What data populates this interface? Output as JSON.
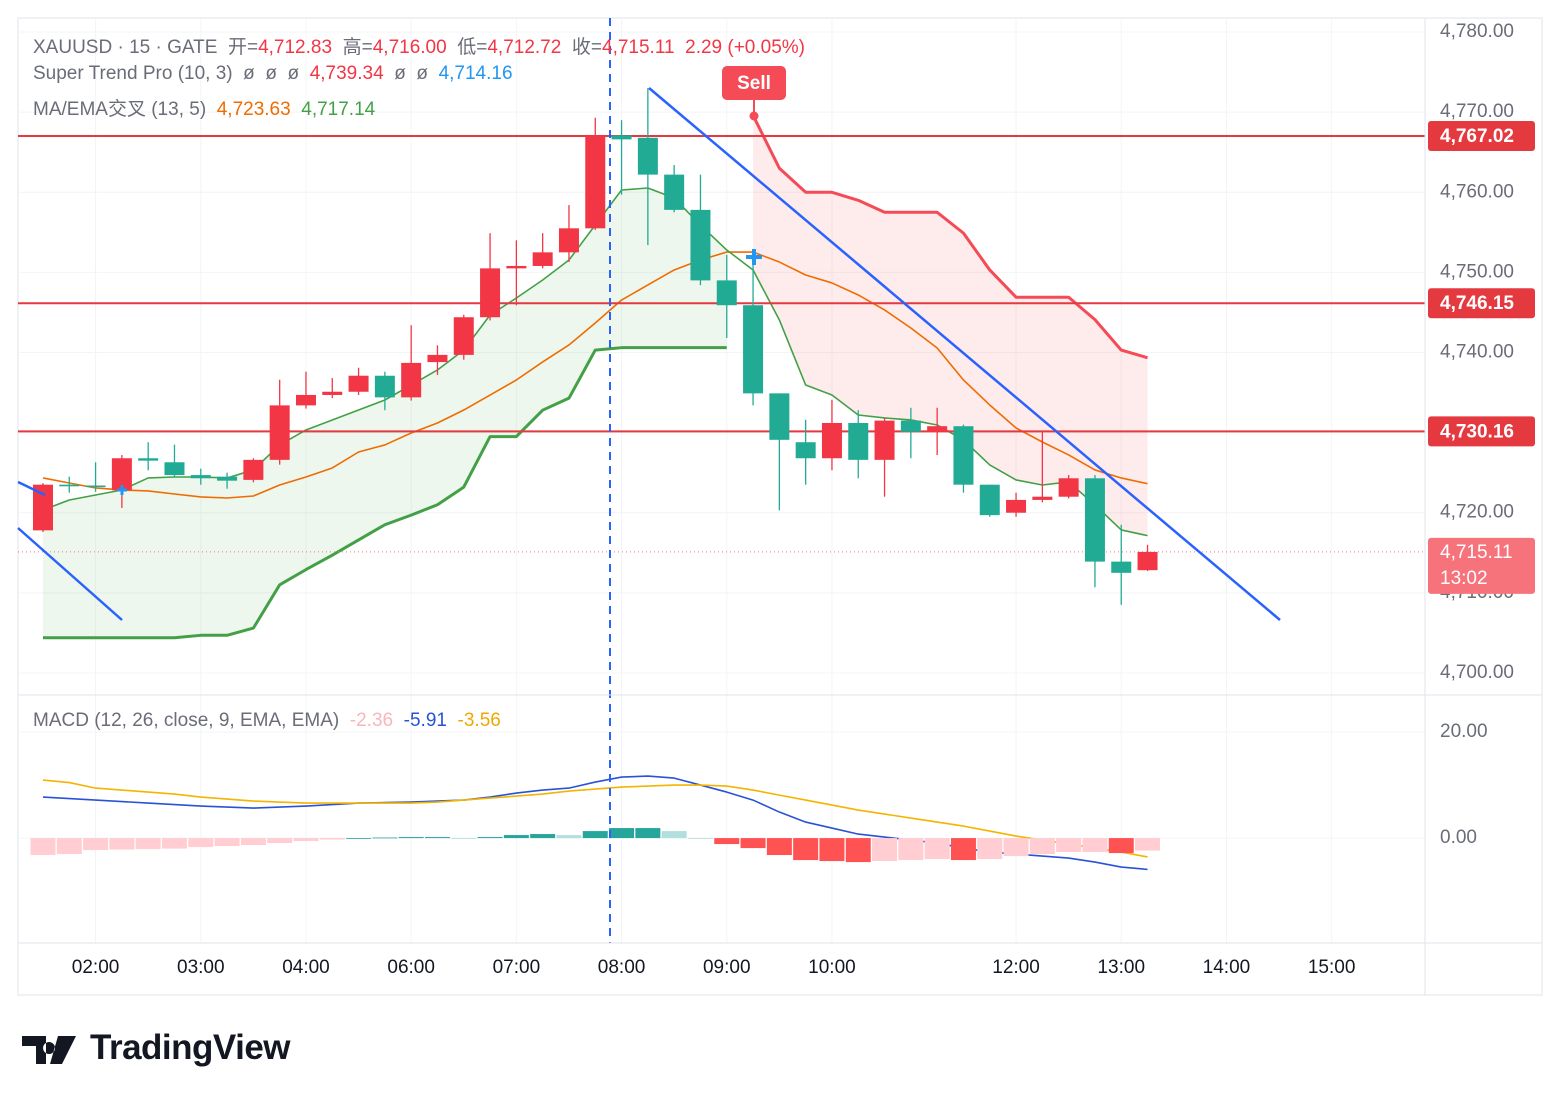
{
  "chart_data": [
    {
      "type": "candlestick",
      "legend": {
        "symbol": "XAUUSD · 15 · GATE",
        "open_label": "开=",
        "open": "4,712.83",
        "high_label": "高=",
        "high": "4,716.00",
        "low_label": "低=",
        "low": "4,712.72",
        "close_label": "收=",
        "close": "4,715.11",
        "change": "2.29 (+0.05%)"
      },
      "open": [
        4717.8,
        4723.5,
        4723.4,
        4722.8,
        4726.8,
        4726.3,
        4724.7,
        4724.5,
        4724.1,
        4726.6,
        4733.4,
        4734.7,
        4735.1,
        4737.1,
        4734.4,
        4738.8,
        4739.7,
        4744.4,
        4750.5,
        4750.8,
        4752.5,
        4755.5,
        4767.1,
        4766.8,
        4762.2,
        4757.8,
        4749.0,
        4745.9,
        4734.9,
        4728.8,
        4726.8,
        4731.2,
        4726.6,
        4731.5,
        4730.1,
        4730.8,
        4723.5,
        4720.0,
        4721.6,
        4722.0,
        4724.3,
        4713.9,
        4712.83
      ],
      "high": [
        4723.7,
        4724.5,
        4726.3,
        4727.2,
        4728.8,
        4728.5,
        4725.5,
        4725.0,
        4726.8,
        4736.6,
        4737.6,
        4736.8,
        4738.1,
        4737.6,
        4743.4,
        4740.9,
        4744.7,
        4754.9,
        4754.0,
        4754.9,
        4758.4,
        4769.3,
        4769.0,
        4773.0,
        4763.4,
        4762.2,
        4752.2,
        4752.2,
        4734.9,
        4731.6,
        4734.1,
        4732.8,
        4731.8,
        4733.1,
        4733.1,
        4731.0,
        4723.5,
        4722.5,
        4730.1,
        4724.7,
        4724.7,
        4718.5,
        4716.0
      ],
      "low": [
        4717.6,
        4722.5,
        4722.6,
        4720.6,
        4725.3,
        4724.4,
        4723.5,
        4723.0,
        4723.8,
        4726.0,
        4733.0,
        4734.3,
        4734.7,
        4732.8,
        4734.0,
        4737.2,
        4739.1,
        4744.0,
        4745.9,
        4750.5,
        4751.3,
        4755.3,
        4759.7,
        4753.4,
        4757.5,
        4748.4,
        4741.8,
        4733.4,
        4720.3,
        4723.5,
        4725.3,
        4724.3,
        4722.0,
        4726.8,
        4727.2,
        4722.5,
        4719.5,
        4719.5,
        4721.3,
        4721.8,
        4710.7,
        4708.5,
        4712.72
      ],
      "close": [
        4723.5,
        4723.3,
        4723.2,
        4726.8,
        4726.5,
        4724.7,
        4724.3,
        4724.0,
        4726.6,
        4733.4,
        4734.7,
        4735.1,
        4737.1,
        4734.4,
        4738.7,
        4739.7,
        4744.4,
        4750.5,
        4750.8,
        4752.5,
        4755.5,
        4767.1,
        4766.6,
        4762.2,
        4757.8,
        4749.0,
        4745.9,
        4734.9,
        4729.1,
        4726.8,
        4731.2,
        4726.6,
        4731.5,
        4730.1,
        4730.8,
        4723.5,
        4719.7,
        4721.6,
        4722.0,
        4724.3,
        4713.9,
        4712.5,
        4715.11
      ],
      "up_color": "#f23645",
      "down_color": "#22ab94",
      "xlim": [
        -0.95,
        52.55
      ],
      "xticks": [
        {
          "value": 2,
          "label": "02:00"
        },
        {
          "value": 6,
          "label": "03:00"
        },
        {
          "value": 10,
          "label": "04:00"
        },
        {
          "value": 14,
          "label": "06:00"
        },
        {
          "value": 18,
          "label": "07:00"
        },
        {
          "value": 22,
          "label": "08:00"
        },
        {
          "value": 26,
          "label": "09:00"
        },
        {
          "value": 30,
          "label": "10:00"
        },
        {
          "value": 37,
          "label": "12:00"
        },
        {
          "value": 41,
          "label": "13:00"
        },
        {
          "value": 45,
          "label": "14:00"
        },
        {
          "value": 49,
          "label": "15:00"
        }
      ],
      "ylim": [
        4697.25,
        4781.75
      ],
      "yticks": [
        {
          "value": 4700,
          "label": "4,700.00"
        },
        {
          "value": 4710,
          "label": "4,710.00"
        },
        {
          "value": 4720,
          "label": "4,720.00"
        },
        {
          "value": 4730,
          "label": "4,730.00"
        },
        {
          "value": 4740,
          "label": "4,740.00"
        },
        {
          "value": 4750,
          "label": "4,750.00"
        },
        {
          "value": 4760,
          "label": "4,760.00"
        },
        {
          "value": 4770,
          "label": "4,770.00"
        },
        {
          "value": 4780,
          "label": "4,780.00"
        }
      ],
      "grid": true,
      "supertrend": {
        "name": "Super Trend Pro (10, 3)",
        "legend_values": [
          {
            "text": "ø",
            "color": "#6a6d78"
          },
          {
            "text": "ø",
            "color": "#6a6d78"
          },
          {
            "text": "ø",
            "color": "#6a6d78"
          },
          {
            "text": "4,739.34",
            "color": "#f23645"
          },
          {
            "text": "ø",
            "color": "#6a6d78"
          },
          {
            "text": "ø",
            "color": "#6a6d78"
          },
          {
            "text": "4,714.16",
            "color": "#2196f3"
          }
        ],
        "up": {
          "color": "#43a047",
          "values": [
            4704.4,
            4704.4,
            4704.4,
            4704.4,
            4704.4,
            4704.4,
            4704.7,
            4704.7,
            4705.6,
            4711.0,
            4712.9,
            4714.7,
            4716.6,
            4718.5,
            4719.7,
            4721.0,
            4723.2,
            4729.5,
            4729.5,
            4732.8,
            4734.3,
            4740.3,
            4740.6,
            4740.6,
            4740.6,
            4740.6,
            4740.6,
            null,
            null,
            null,
            null,
            null,
            null,
            null,
            null,
            null,
            null,
            null,
            null,
            null,
            null,
            null,
            null
          ]
        },
        "down": {
          "color": "#f44b56",
          "values": [
            null,
            null,
            null,
            null,
            null,
            null,
            null,
            null,
            null,
            null,
            null,
            null,
            null,
            null,
            null,
            null,
            null,
            null,
            null,
            null,
            null,
            null,
            null,
            null,
            null,
            null,
            null,
            4769.6,
            4763.0,
            4760.0,
            4760.0,
            4759.0,
            4757.5,
            4757.5,
            4757.5,
            4754.9,
            4750.3,
            4746.9,
            4746.9,
            4746.9,
            4744.1,
            4740.3,
            4739.34
          ]
        }
      },
      "ma_ema": {
        "name": "MA/EMA交叉 (13, 5)",
        "series": [
          {
            "color": "#ef6c00",
            "label": "4,723.63",
            "values": [
              4724.34,
              4723.71,
              4723.09,
              4722.84,
              4722.72,
              4722.34,
              4721.97,
              4721.84,
              4722.09,
              4723.46,
              4724.46,
              4725.59,
              4727.58,
              4728.46,
              4729.95,
              4731.2,
              4732.82,
              4734.69,
              4736.57,
              4738.82,
              4740.94,
              4743.68,
              4746.55,
              4748.43,
              4750.3,
              4751.54,
              4752.54,
              4752.54,
              4751.29,
              4749.67,
              4748.68,
              4747.18,
              4745.31,
              4743.06,
              4740.56,
              4736.57,
              4733.45,
              4730.58,
              4728.83,
              4727.21,
              4725.34,
              4724.34,
              4723.63
            ]
          },
          {
            "color": "#43a047",
            "label": "4,717.14",
            "values": [
              4720.34,
              4721.59,
              4722.21,
              4722.84,
              4724.34,
              4724.46,
              4724.46,
              4724.34,
              4725.34,
              4728.46,
              4730.33,
              4731.58,
              4732.82,
              4734.07,
              4735.94,
              4737.82,
              4740.31,
              4744.68,
              4746.8,
              4749.05,
              4751.54,
              4755.91,
              4760.28,
              4760.53,
              4759.28,
              4755.91,
              4752.79,
              4750.3,
              4744.06,
              4735.94,
              4734.69,
              4732.2,
              4731.83,
              4731.58,
              4730.95,
              4729.08,
              4725.96,
              4724.09,
              4723.46,
              4723.84,
              4720.97,
              4717.85,
              4717.14
            ]
          }
        ]
      },
      "levels": [
        {
          "value": 4767.02,
          "label": "4,767.02"
        },
        {
          "value": 4746.15,
          "label": "4,746.15"
        },
        {
          "value": 4730.16,
          "label": "4,730.16"
        }
      ],
      "level_color": "#e53940",
      "last_price": {
        "value": 4715.11,
        "label": "4,715.11",
        "countdown": "13:02",
        "color": "#f7737c"
      },
      "annotation": "Sell"
    },
    {
      "type": "macd",
      "name": "MACD (12, 26, close, 9, EMA, EMA)",
      "legend_values": [
        {
          "text": "-2.36",
          "color": "#f7b6bd"
        },
        {
          "text": "-5.91",
          "color": "#2953d6"
        },
        {
          "text": "-3.56",
          "color": "#f0a800"
        }
      ],
      "histogram": {
        "colors": [
          "#26a69a",
          "#b2dfdb",
          "#ff5252",
          "#ffcdd2"
        ],
        "values": [
          -3.2,
          -3.02,
          -2.26,
          -2.17,
          -2.08,
          -1.98,
          -1.7,
          -1.51,
          -1.32,
          -0.94,
          -0.56,
          -0.28,
          0.0,
          0.1,
          0.19,
          0.19,
          0.0,
          0.19,
          0.57,
          0.76,
          0.56,
          1.32,
          1.89,
          1.89,
          1.32,
          0.0,
          -1.13,
          -1.89,
          -3.2,
          -4.15,
          -4.34,
          -4.53,
          -4.34,
          -4.15,
          -3.96,
          -4.15,
          -3.96,
          -3.4,
          -3.02,
          -2.64,
          -2.64,
          -2.83,
          -2.36
        ]
      },
      "series": [
        {
          "color": "#2953d6",
          "values": [
            7.74,
            7.45,
            7.17,
            6.89,
            6.6,
            6.32,
            6.04,
            5.85,
            5.66,
            5.85,
            6.04,
            6.32,
            6.6,
            6.7,
            6.79,
            6.98,
            7.17,
            7.74,
            8.49,
            9.06,
            9.43,
            10.57,
            11.51,
            11.7,
            11.32,
            10.0,
            8.68,
            7.17,
            4.91,
            3.02,
            1.89,
            0.75,
            0.19,
            -0.38,
            -0.94,
            -1.89,
            -2.64,
            -3.02,
            -3.4,
            -3.77,
            -4.53,
            -5.47,
            -5.91
          ]
        },
        {
          "color": "#f5b400",
          "values": [
            10.94,
            10.47,
            9.43,
            9.06,
            8.68,
            8.3,
            7.74,
            7.36,
            6.98,
            6.79,
            6.6,
            6.6,
            6.6,
            6.6,
            6.6,
            6.79,
            7.17,
            7.55,
            7.92,
            8.3,
            8.87,
            9.25,
            9.62,
            9.81,
            10.0,
            10.0,
            9.81,
            9.06,
            8.11,
            7.17,
            6.23,
            5.28,
            4.53,
            3.77,
            3.02,
            2.26,
            1.32,
            0.38,
            -0.38,
            -1.13,
            -1.89,
            -2.64,
            -3.56
          ]
        }
      ],
      "ylim": [
        -19.8,
        27.0
      ],
      "yticks": [
        {
          "value": 0,
          "label": "0.00"
        },
        {
          "value": 20,
          "label": "20.00"
        }
      ]
    }
  ],
  "brand": "TradingView"
}
